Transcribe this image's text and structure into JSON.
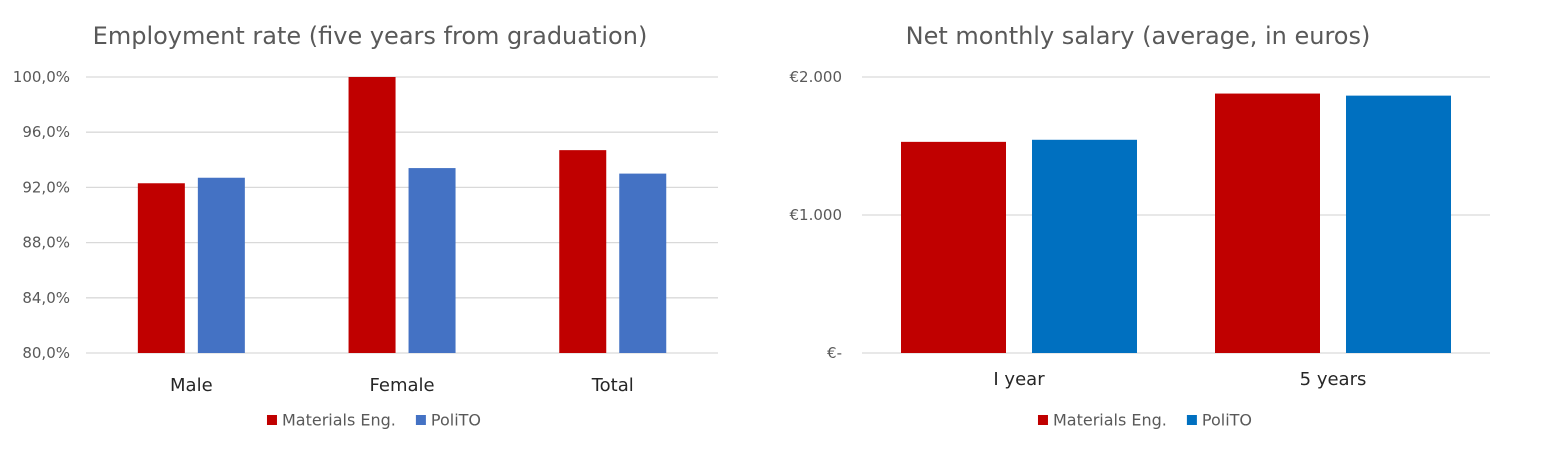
{
  "chart_data": [
    {
      "type": "bar",
      "title": "Employment rate (five years from graduation)",
      "categories": [
        "Male",
        "Female",
        "Total"
      ],
      "series": [
        {
          "name": "Materials Eng.",
          "color": "#c00000",
          "values": [
            92.3,
            100.0,
            94.7
          ]
        },
        {
          "name": "PoliTO",
          "color": "#4472c4",
          "values": [
            92.7,
            93.4,
            93.0
          ]
        }
      ],
      "ylim": [
        80,
        100
      ],
      "yticks": [
        80,
        84,
        88,
        92,
        96,
        100
      ],
      "ytick_labels": [
        "80,0%",
        "84,0%",
        "88,0%",
        "92,0%",
        "96,0%",
        "100,0%"
      ],
      "grid": true,
      "legend": "bottom"
    },
    {
      "type": "bar",
      "title": "Net monthly salary (average, in euros)",
      "categories": [
        "I year",
        "5 years"
      ],
      "series": [
        {
          "name": "Materials Eng.",
          "color": "#c00000",
          "values": [
            1530,
            1880
          ]
        },
        {
          "name": "PoliTO",
          "color": "#0070c0",
          "values": [
            1545,
            1865
          ]
        }
      ],
      "ylim": [
        0,
        2000
      ],
      "yticks": [
        0,
        1000,
        2000
      ],
      "ytick_labels": [
        "€-",
        "€1.000",
        "€2.000"
      ],
      "grid": true,
      "legend": "bottom"
    }
  ]
}
